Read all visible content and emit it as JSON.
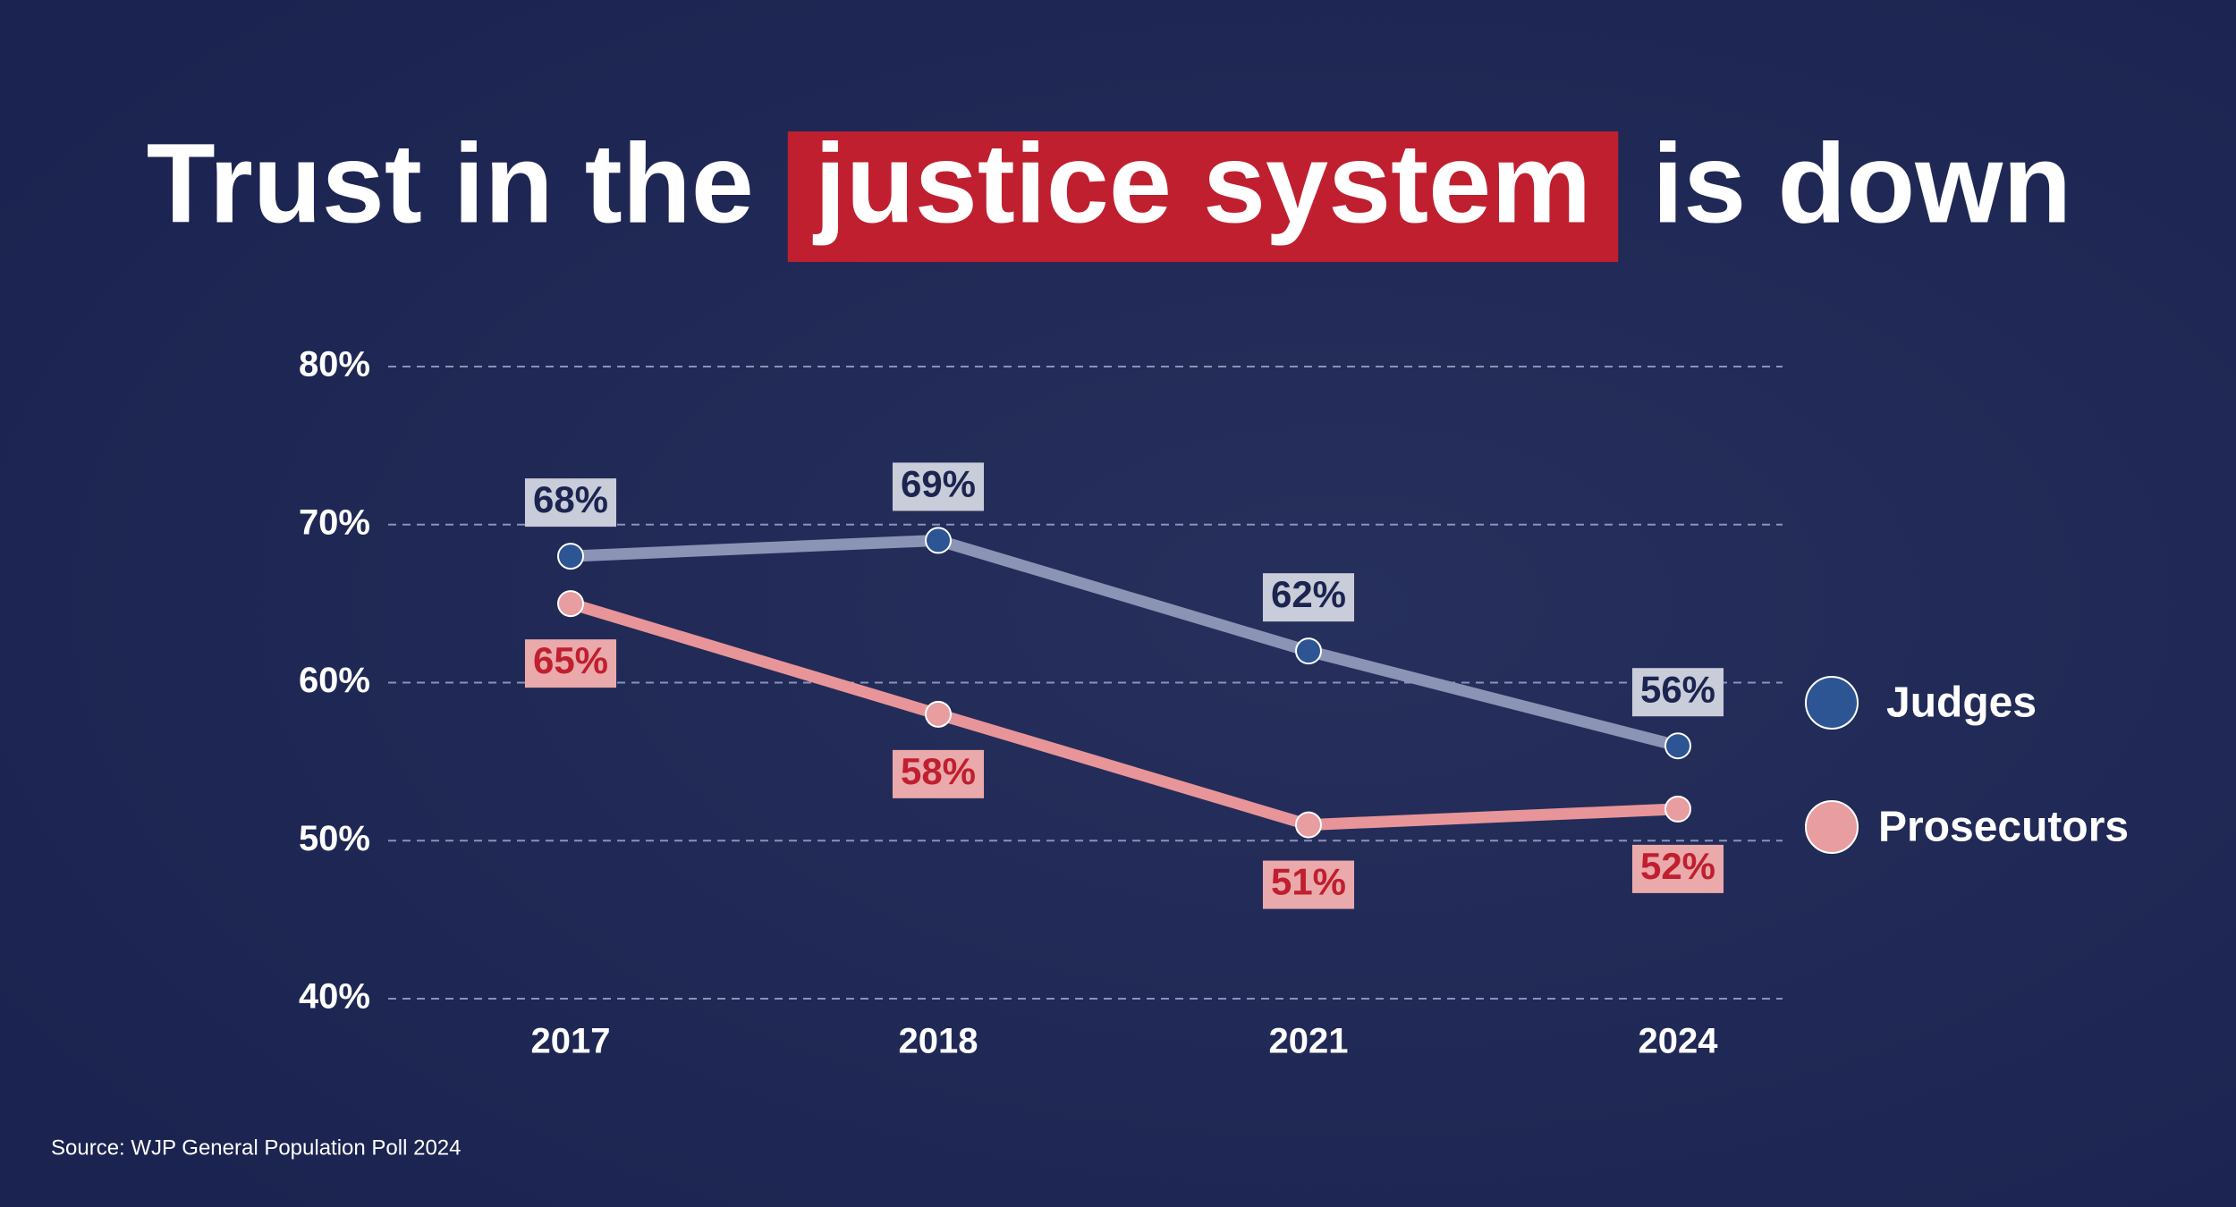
{
  "chart_data": {
    "type": "line",
    "title_parts": [
      "Trust in the",
      "justice system",
      "is down"
    ],
    "categories": [
      "2017",
      "2018",
      "2021",
      "2024"
    ],
    "series": [
      {
        "name": "Judges",
        "color": "#2d5594",
        "line_color": "#8c94b6",
        "label_box": "#c9ccd9",
        "label_text": "#1c2550",
        "values": [
          68,
          69,
          62,
          56
        ],
        "value_labels": [
          "68%",
          "69%",
          "62%",
          "56%"
        ]
      },
      {
        "name": "Prosecutors",
        "color": "#e89da0",
        "line_color": "#e8959a",
        "label_box": "#eaa9ab",
        "label_text": "#c01f2f",
        "values": [
          65,
          58,
          51,
          52
        ],
        "value_labels": [
          "65%",
          "58%",
          "51%",
          "52%"
        ]
      }
    ],
    "ylim": [
      40,
      80
    ],
    "yticks": [
      {
        "value": 40,
        "label": "40%"
      },
      {
        "value": 50,
        "label": "50%"
      },
      {
        "value": 60,
        "label": "60%"
      },
      {
        "value": 70,
        "label": "70%"
      },
      {
        "value": 80,
        "label": "80%"
      }
    ],
    "grid": true,
    "source": "Source: WJP General Population Poll 2024"
  }
}
